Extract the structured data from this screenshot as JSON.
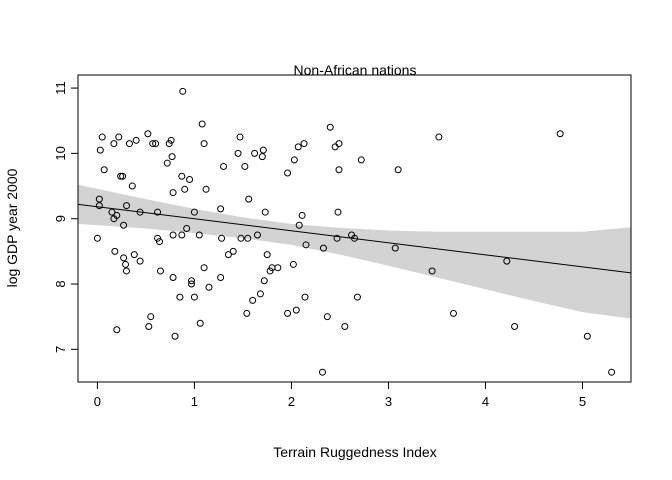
{
  "chart_data": {
    "type": "scatter",
    "title": "Non-African nations",
    "xlabel": "Terrain Ruggedness Index",
    "ylabel": "log GDP year 2000",
    "xlim": [
      -0.2,
      5.5
    ],
    "ylim": [
      6.5,
      11.2
    ],
    "xticks": [
      0,
      1,
      2,
      3,
      4,
      5
    ],
    "yticks": [
      7,
      8,
      9,
      10,
      11
    ],
    "grid": false,
    "colors": {
      "band": "#d3d3d3",
      "line": "#000000",
      "points": "#000000"
    },
    "regression": {
      "x": [
        -0.2,
        5.5
      ],
      "y": [
        9.22,
        8.17
      ]
    },
    "confidence_band": {
      "x": [
        -0.2,
        0.5,
        1.0,
        1.5,
        2.0,
        2.5,
        3.0,
        3.5,
        4.0,
        4.5,
        5.0,
        5.5
      ],
      "lower": [
        8.92,
        8.85,
        8.78,
        8.7,
        8.6,
        8.45,
        8.28,
        8.1,
        7.92,
        7.74,
        7.57,
        7.47
      ],
      "upper": [
        9.52,
        9.3,
        9.15,
        9.02,
        8.92,
        8.86,
        8.82,
        8.8,
        8.8,
        8.8,
        8.8,
        8.87
      ]
    },
    "points": [
      [
        0.0,
        8.7
      ],
      [
        0.02,
        9.3
      ],
      [
        0.02,
        9.2
      ],
      [
        0.03,
        10.05
      ],
      [
        0.05,
        10.25
      ],
      [
        0.07,
        9.75
      ],
      [
        0.15,
        9.1
      ],
      [
        0.17,
        9.0
      ],
      [
        0.17,
        10.15
      ],
      [
        0.18,
        8.5
      ],
      [
        0.2,
        9.05
      ],
      [
        0.2,
        7.3
      ],
      [
        0.22,
        10.25
      ],
      [
        0.24,
        9.65
      ],
      [
        0.26,
        9.65
      ],
      [
        0.27,
        8.9
      ],
      [
        0.27,
        8.4
      ],
      [
        0.29,
        8.3
      ],
      [
        0.3,
        8.2
      ],
      [
        0.3,
        9.2
      ],
      [
        0.33,
        10.15
      ],
      [
        0.36,
        9.5
      ],
      [
        0.38,
        8.45
      ],
      [
        0.4,
        10.2
      ],
      [
        0.44,
        9.1
      ],
      [
        0.44,
        8.35
      ],
      [
        0.52,
        10.3
      ],
      [
        0.53,
        7.35
      ],
      [
        0.55,
        7.5
      ],
      [
        0.57,
        10.15
      ],
      [
        0.6,
        10.15
      ],
      [
        0.62,
        9.1
      ],
      [
        0.62,
        8.7
      ],
      [
        0.64,
        8.65
      ],
      [
        0.65,
        8.2
      ],
      [
        0.72,
        9.85
      ],
      [
        0.74,
        10.15
      ],
      [
        0.76,
        10.2
      ],
      [
        0.77,
        9.95
      ],
      [
        0.78,
        9.4
      ],
      [
        0.78,
        8.75
      ],
      [
        0.78,
        8.1
      ],
      [
        0.8,
        7.2
      ],
      [
        0.85,
        7.8
      ],
      [
        0.87,
        9.65
      ],
      [
        0.87,
        8.75
      ],
      [
        0.88,
        10.95
      ],
      [
        0.9,
        9.45
      ],
      [
        0.92,
        8.85
      ],
      [
        0.95,
        9.6
      ],
      [
        0.97,
        8.05
      ],
      [
        0.97,
        8.0
      ],
      [
        1.0,
        9.1
      ],
      [
        1.0,
        7.8
      ],
      [
        1.05,
        8.75
      ],
      [
        1.06,
        7.4
      ],
      [
        1.08,
        10.45
      ],
      [
        1.1,
        8.25
      ],
      [
        1.1,
        10.15
      ],
      [
        1.12,
        9.45
      ],
      [
        1.15,
        7.95
      ],
      [
        1.27,
        9.15
      ],
      [
        1.27,
        8.1
      ],
      [
        1.28,
        8.7
      ],
      [
        1.3,
        9.8
      ],
      [
        1.35,
        8.45
      ],
      [
        1.4,
        8.5
      ],
      [
        1.45,
        10.0
      ],
      [
        1.47,
        10.25
      ],
      [
        1.48,
        8.7
      ],
      [
        1.52,
        9.8
      ],
      [
        1.54,
        7.55
      ],
      [
        1.55,
        8.7
      ],
      [
        1.56,
        9.3
      ],
      [
        1.6,
        7.75
      ],
      [
        1.62,
        10.0
      ],
      [
        1.65,
        8.75
      ],
      [
        1.68,
        7.85
      ],
      [
        1.7,
        9.95
      ],
      [
        1.71,
        10.05
      ],
      [
        1.72,
        8.05
      ],
      [
        1.73,
        9.1
      ],
      [
        1.75,
        8.45
      ],
      [
        1.78,
        8.2
      ],
      [
        1.8,
        8.25
      ],
      [
        1.86,
        8.25
      ],
      [
        1.96,
        9.7
      ],
      [
        1.96,
        7.55
      ],
      [
        2.02,
        8.3
      ],
      [
        2.03,
        9.9
      ],
      [
        2.05,
        7.6
      ],
      [
        2.07,
        10.1
      ],
      [
        2.08,
        8.9
      ],
      [
        2.11,
        9.05
      ],
      [
        2.13,
        10.15
      ],
      [
        2.14,
        7.8
      ],
      [
        2.15,
        8.6
      ],
      [
        2.32,
        6.65
      ],
      [
        2.33,
        8.55
      ],
      [
        2.37,
        7.5
      ],
      [
        2.4,
        10.4
      ],
      [
        2.45,
        10.1
      ],
      [
        2.47,
        8.7
      ],
      [
        2.48,
        9.1
      ],
      [
        2.49,
        10.15
      ],
      [
        2.49,
        9.75
      ],
      [
        2.55,
        7.35
      ],
      [
        2.62,
        8.75
      ],
      [
        2.65,
        8.7
      ],
      [
        2.68,
        7.8
      ],
      [
        2.72,
        9.9
      ],
      [
        3.07,
        8.55
      ],
      [
        3.1,
        9.75
      ],
      [
        3.45,
        8.2
      ],
      [
        3.52,
        10.25
      ],
      [
        3.67,
        7.55
      ],
      [
        4.22,
        8.35
      ],
      [
        4.3,
        7.35
      ],
      [
        4.77,
        10.3
      ],
      [
        5.05,
        7.2
      ],
      [
        5.3,
        6.65
      ]
    ]
  }
}
